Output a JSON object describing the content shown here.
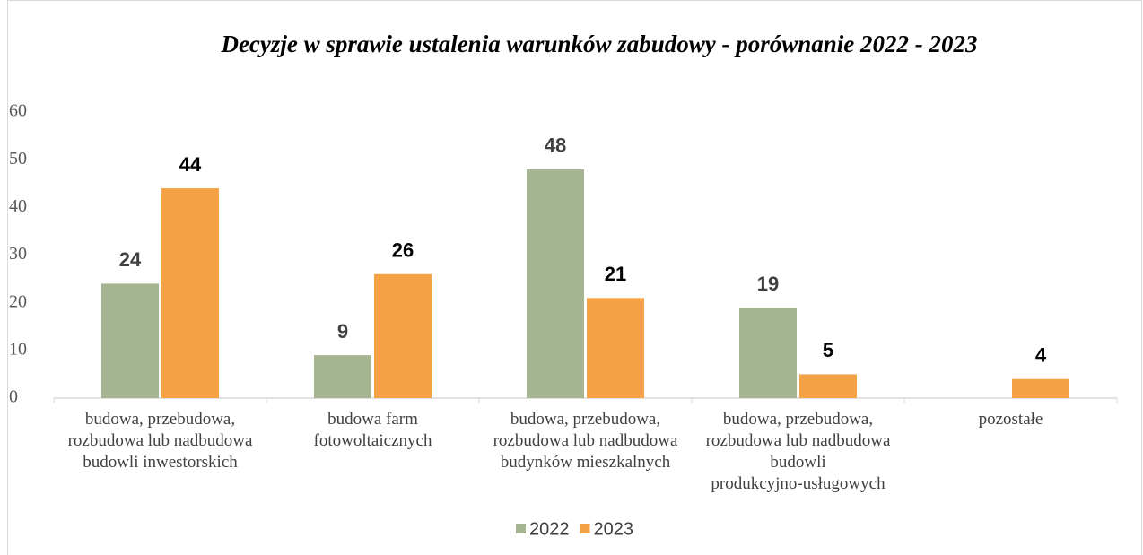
{
  "chart_data": {
    "type": "bar",
    "title": "Decyzje w sprawie ustalenia warunków zabudowy - porównanie 2022 - 2023",
    "categories": [
      "budowa, przebudowa, rozbudowa lub nadbudowa budowli inwestorskich",
      "budowa farm fotowoltaicznych",
      "budowa, przebudowa, rozbudowa lub nadbudowa budynków mieszkalnych",
      "budowa, przebudowa, rozbudowa lub nadbudowa budowli produkcyjno-usługowych",
      "pozostałe"
    ],
    "series": [
      {
        "name": "2022",
        "color": "#a5b592",
        "values": [
          24,
          9,
          48,
          19,
          null
        ]
      },
      {
        "name": "2023",
        "color": "#f4a245",
        "values": [
          44,
          26,
          21,
          5,
          4
        ]
      }
    ],
    "ylim": [
      0,
      60
    ],
    "yticks": [
      0,
      10,
      20,
      30,
      40,
      50,
      60
    ],
    "grid": false,
    "legend": "bottom"
  }
}
